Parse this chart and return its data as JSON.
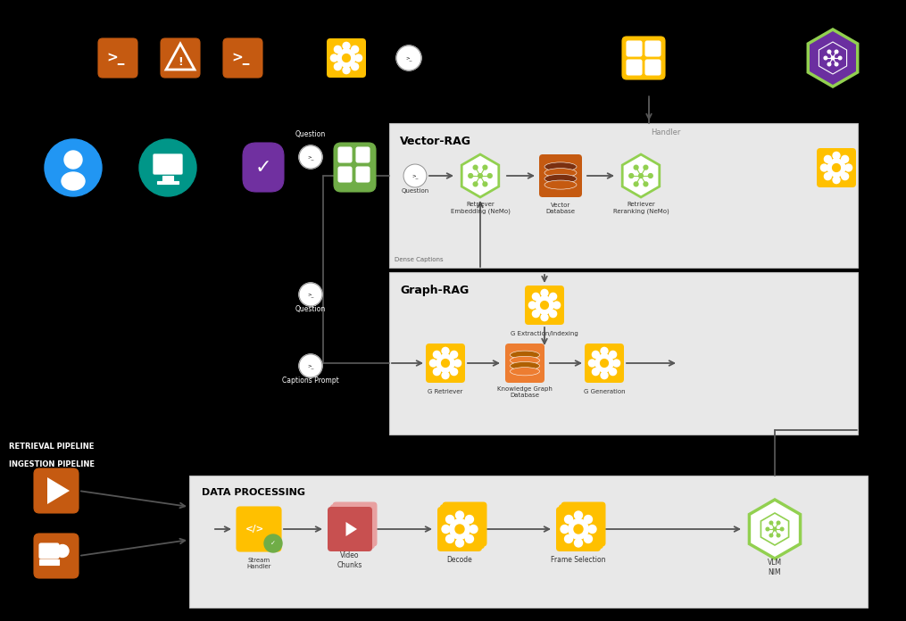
{
  "bg_color": "#000000",
  "colors": {
    "orange_dark": "#C55A11",
    "orange_bright": "#FFC000",
    "orange_medium": "#ED7D31",
    "green_hex": "#92D050",
    "teal": "#00B050",
    "blue": "#4472C4",
    "purple": "#7030A0",
    "gray_box": "#E8E8E8",
    "white": "#FFFFFF",
    "black": "#000000",
    "text_dark": "#333333",
    "arrow_color": "#555555",
    "box_border": "#BBBBBB",
    "green_icon": "#70AD47",
    "red_vid": "#C85050",
    "red_vid_light": "#E8A0A0"
  },
  "labels": {
    "vector_rag": "Vector-RAG",
    "graph_rag": "Graph-RAG",
    "data_processing": "DATA PROCESSING",
    "retrieval_pipeline": "RETRIEVAL PIPELINE",
    "ingestion_pipeline": "INGESTION PIPELINE",
    "stream_handler": "Stream\nHandler",
    "video_chunks": "Video\nChunks",
    "decode": "Decode",
    "frame_selection": "Frame Selection",
    "vlm_nim": "VLM\nNIM",
    "retriever_embedding": "Retriever\nEmbedding (NeMo)",
    "vector_database": "Vector\nDatabase",
    "retriever_reranking": "Retriever\nReranking (NeMo)",
    "g_extraction": "G Extraction/Indexing",
    "g_retriever": "G Retriever",
    "knowledge_graph": "Knowledge Graph\nDatabase",
    "g_generation": "G Generation",
    "question_label": "Question",
    "captions_prompt": "Captions Prompt",
    "dense_captions": "Dense Captions",
    "handler": "Handler"
  }
}
